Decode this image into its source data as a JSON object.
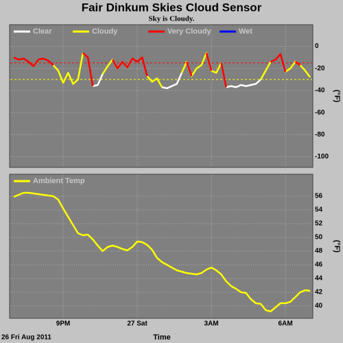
{
  "chart_data": [
    {
      "type": "line",
      "title": "Fair Dinkum Skies Cloud Sensor",
      "subtitle": "Sky is Cloudy.",
      "y_label": "(°F)",
      "xlim": [
        18.86,
        31.08
      ],
      "ylim": [
        -109,
        19
      ],
      "yticks": [
        0,
        -20,
        -40,
        -60,
        -80,
        -100
      ],
      "grid": true,
      "reference_lines": [
        {
          "value": -15,
          "color": "#ff0000"
        },
        {
          "value": -30,
          "color": "#ffff00"
        }
      ],
      "x": [
        19,
        19.2,
        19.4,
        19.6,
        19.8,
        20,
        20.2,
        20.4,
        20.6,
        20.8,
        21,
        21.2,
        21.4,
        21.6,
        21.8,
        22,
        22.2,
        22.4,
        22.6,
        22.8,
        23,
        23.2,
        23.4,
        23.6,
        23.8,
        24,
        24.2,
        24.4,
        24.6,
        24.8,
        25,
        25.2,
        25.4,
        25.6,
        25.8,
        26,
        26.2,
        26.4,
        26.6,
        26.8,
        27,
        27.2,
        27.4,
        27.6,
        27.8,
        28,
        28.2,
        28.4,
        28.6,
        28.8,
        29,
        29.2,
        29.4,
        29.6,
        29.8,
        30,
        30.2,
        30.4,
        30.6,
        30.8,
        31
      ],
      "series": [
        {
          "name": "Clear",
          "color": "#ffffff",
          "values": [
            null,
            null,
            null,
            null,
            null,
            null,
            null,
            null,
            null,
            null,
            null,
            null,
            null,
            null,
            null,
            null,
            -36,
            -35,
            -25,
            null,
            null,
            null,
            null,
            null,
            null,
            null,
            null,
            null,
            null,
            null,
            -37,
            -38,
            -36,
            -34,
            -24,
            null,
            null,
            null,
            null,
            null,
            null,
            null,
            null,
            -37,
            -36,
            -37,
            -35,
            -36,
            -35,
            -34,
            -30,
            null,
            null,
            null,
            null,
            null,
            null,
            null,
            null,
            null,
            null
          ]
        },
        {
          "name": "Cloudy",
          "color": "#ffff00",
          "values": [
            null,
            null,
            null,
            null,
            -18,
            -12,
            null,
            null,
            -17,
            -22,
            -33,
            -24,
            -34,
            -30,
            -6,
            null,
            null,
            null,
            -25,
            -18,
            -12,
            -20,
            -14,
            -19,
            -11,
            null,
            null,
            -27,
            -32,
            -29,
            -37,
            null,
            null,
            null,
            -24,
            -14,
            -27,
            -20,
            -17,
            -6,
            -22,
            -24,
            -15,
            null,
            null,
            null,
            null,
            null,
            null,
            null,
            -30,
            -22,
            -14,
            null,
            null,
            -23,
            -20,
            -14,
            -17,
            -22,
            -28
          ]
        },
        {
          "name": "Very Cloudy",
          "color": "#ff0000",
          "values": [
            -10,
            -12,
            -11,
            -14,
            -18,
            -12,
            -11,
            -13,
            -17,
            null,
            null,
            null,
            null,
            null,
            -6,
            -10,
            -36,
            null,
            null,
            null,
            -12,
            -20,
            -14,
            -19,
            -11,
            -14,
            -10,
            -27,
            null,
            null,
            null,
            null,
            null,
            null,
            null,
            -14,
            -27,
            null,
            null,
            -6,
            -22,
            null,
            -15,
            -37,
            null,
            null,
            null,
            null,
            null,
            null,
            null,
            null,
            -14,
            -12,
            -7,
            -23,
            null,
            -14,
            -17,
            null,
            null
          ]
        },
        {
          "name": "Wet",
          "color": "#0000ff",
          "values": [
            null,
            null,
            null,
            null,
            null,
            null,
            null,
            null,
            null,
            null,
            null,
            null,
            null,
            null,
            null,
            null,
            null,
            null,
            null,
            null,
            null,
            null,
            null,
            null,
            null,
            null,
            null,
            null,
            null,
            null,
            null,
            null,
            null,
            null,
            null,
            null,
            null,
            null,
            null,
            null,
            null,
            null,
            null,
            null,
            null,
            null,
            null,
            null,
            null,
            null,
            null,
            null,
            null,
            null,
            null,
            null,
            null,
            null,
            null,
            null,
            null
          ]
        }
      ]
    },
    {
      "type": "line",
      "y_label": "(°F)",
      "x_label": "Time",
      "annotation": "26 Fri Aug 2011",
      "xlim": [
        18.86,
        31.08
      ],
      "ylim": [
        38.3,
        59.1
      ],
      "yticks": [
        56,
        54,
        52,
        50,
        48,
        46,
        44,
        42,
        40
      ],
      "grid": true,
      "xticks": [
        {
          "value": 21,
          "label": "9PM"
        },
        {
          "value": 24,
          "label": "27 Sat"
        },
        {
          "value": 27,
          "label": "3AM"
        },
        {
          "value": 30,
          "label": "6AM"
        }
      ],
      "x": [
        19,
        19.2,
        19.4,
        19.6,
        19.8,
        20,
        20.2,
        20.4,
        20.6,
        20.8,
        21,
        21.2,
        21.4,
        21.6,
        21.8,
        22,
        22.2,
        22.4,
        22.6,
        22.8,
        23,
        23.2,
        23.4,
        23.6,
        23.8,
        24,
        24.2,
        24.4,
        24.6,
        24.8,
        25,
        25.2,
        25.4,
        25.6,
        25.8,
        26,
        26.2,
        26.4,
        26.6,
        26.8,
        27,
        27.2,
        27.4,
        27.6,
        27.8,
        28,
        28.2,
        28.4,
        28.6,
        28.8,
        29,
        29.2,
        29.4,
        29.6,
        29.8,
        30,
        30.2,
        30.4,
        30.6,
        30.8,
        31
      ],
      "series": [
        {
          "name": "Ambient Temp",
          "color": "#ffff00",
          "values": [
            55.9,
            56.2,
            56.5,
            56.5,
            56.4,
            56.3,
            56.2,
            56.1,
            56.0,
            55.5,
            54.2,
            53.0,
            51.8,
            50.6,
            50.3,
            50.4,
            49.7,
            48.8,
            48.0,
            48.6,
            48.8,
            48.6,
            48.3,
            48.1,
            48.6,
            49.4,
            49.3,
            48.9,
            48.2,
            47.0,
            46.4,
            46.0,
            45.6,
            45.2,
            45.0,
            44.8,
            44.7,
            44.6,
            44.8,
            45.3,
            45.6,
            45.2,
            44.6,
            43.6,
            42.9,
            42.5,
            42.0,
            41.9,
            41.0,
            40.4,
            40.3,
            39.4,
            39.2,
            39.8,
            40.4,
            40.4,
            40.6,
            41.3,
            42.0,
            42.3,
            42.2
          ]
        }
      ]
    }
  ]
}
